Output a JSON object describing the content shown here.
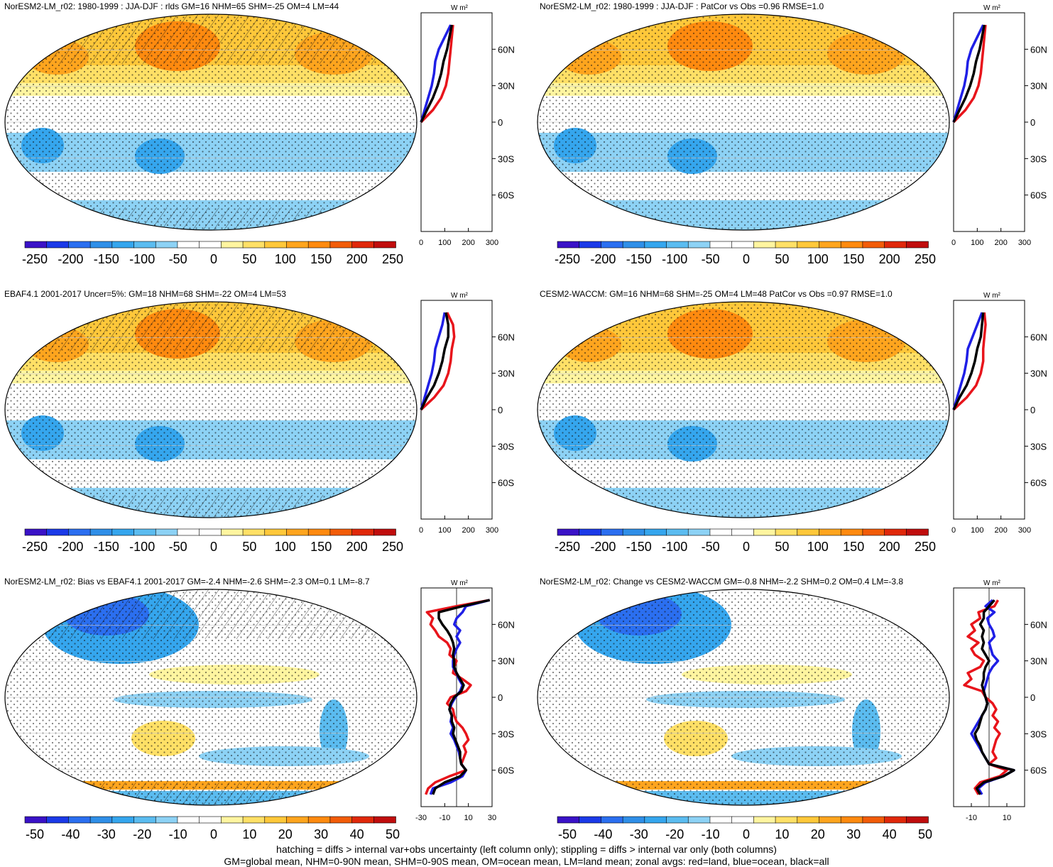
{
  "footer": {
    "line1": "hatching = diffs > internal var+obs uncertainty (left column only); stippling = diffs > internal var only (both columns)",
    "line2": "GM=global mean, NHM=0-90N mean, SHM=0-90S mean, OM=ocean mean, LM=land mean; zonal avgs: red=land, blue=ocean, black=all"
  },
  "colors": {
    "land": "#e8141b",
    "ocean": "#1f1fe6",
    "all": "#000000",
    "scale": [
      "#3a12c7",
      "#1b3ae8",
      "#2b6ff0",
      "#2f8fe8",
      "#35a6ee",
      "#5bbcf0",
      "#8dd2f5",
      "#ffffff",
      "#ffffff",
      "#fff5a0",
      "#ffe066",
      "#ffc83a",
      "#ffa51e",
      "#ff8a0f",
      "#f25c08",
      "#e0280a",
      "#c00d0d"
    ]
  },
  "panels": [
    {
      "title": "NorESM2-LM_r02: 1980-1999 : JJA-DJF : rlds GM=16 NHM=65 SHM=-25 OM=4 LM=44",
      "colorbar_labels": [
        "-250",
        "-200",
        "-150",
        "-100",
        "-50",
        "0",
        "50",
        "100",
        "150",
        "200",
        "250"
      ],
      "chart_data": {
        "type": "line",
        "title": "",
        "xlabel": "W m²",
        "x_ticks": [
          "0",
          "100",
          "200",
          "300"
        ],
        "y_ticks": [
          "60N",
          "30N",
          "0",
          "30S",
          "60S"
        ],
        "xlim": [
          0,
          300
        ],
        "ylim": [
          -90,
          90
        ],
        "series": [
          {
            "name": "land",
            "lat": [
              0,
              10,
              20,
              30,
              40,
              50,
              60,
              70,
              80
            ],
            "values": [
              0,
              50,
              85,
              105,
              115,
              120,
              125,
              130,
              135
            ]
          },
          {
            "name": "ocean",
            "lat": [
              0,
              10,
              20,
              30,
              40,
              50,
              60,
              70,
              80
            ],
            "values": [
              0,
              15,
              30,
              45,
              55,
              60,
              75,
              100,
              125
            ]
          },
          {
            "name": "all",
            "lat": [
              0,
              10,
              20,
              30,
              40,
              50,
              60,
              70,
              80
            ],
            "values": [
              0,
              25,
              50,
              70,
              85,
              95,
              110,
              120,
              130
            ]
          }
        ]
      }
    },
    {
      "title": "NorESM2-LM_r02: 1980-1999 : JJA-DJF : PatCor vs Obs =0.96 RMSE=1.0",
      "colorbar_labels": [
        "-250",
        "-200",
        "-150",
        "-100",
        "-50",
        "0",
        "50",
        "100",
        "150",
        "200",
        "250"
      ],
      "chart_data": {
        "type": "line",
        "title": "",
        "xlabel": "W m²",
        "x_ticks": [
          "0",
          "100",
          "200",
          "300"
        ],
        "y_ticks": [
          "60N",
          "30N",
          "0",
          "30S",
          "60S"
        ],
        "xlim": [
          0,
          300
        ],
        "ylim": [
          -90,
          90
        ],
        "series": [
          {
            "name": "land",
            "lat": [
              0,
              10,
              20,
              30,
              40,
              50,
              60,
              70,
              80
            ],
            "values": [
              0,
              50,
              85,
              105,
              115,
              120,
              125,
              130,
              135
            ]
          },
          {
            "name": "ocean",
            "lat": [
              0,
              10,
              20,
              30,
              40,
              50,
              60,
              70,
              80
            ],
            "values": [
              0,
              15,
              30,
              45,
              55,
              60,
              75,
              100,
              125
            ]
          },
          {
            "name": "all",
            "lat": [
              0,
              10,
              20,
              30,
              40,
              50,
              60,
              70,
              80
            ],
            "values": [
              0,
              25,
              50,
              70,
              85,
              95,
              110,
              120,
              130
            ]
          }
        ]
      }
    },
    {
      "title": "EBAF4.1 2001-2017 Uncer=5%: GM=18 NHM=68 SHM=-22 OM=4 LM=53",
      "colorbar_labels": [
        "-250",
        "-200",
        "-150",
        "-100",
        "-50",
        "0",
        "50",
        "100",
        "150",
        "200",
        "250"
      ],
      "chart_data": {
        "type": "line",
        "title": "",
        "xlabel": "W m²",
        "x_ticks": [
          "0",
          "100",
          "200",
          "300"
        ],
        "y_ticks": [
          "60N",
          "30N",
          "0",
          "30S",
          "60S"
        ],
        "xlim": [
          0,
          300
        ],
        "ylim": [
          -90,
          90
        ],
        "series": [
          {
            "name": "land",
            "lat": [
              0,
              10,
              20,
              30,
              40,
              50,
              60,
              70,
              80
            ],
            "values": [
              0,
              55,
              95,
              115,
              125,
              130,
              140,
              135,
              110
            ]
          },
          {
            "name": "ocean",
            "lat": [
              0,
              10,
              20,
              30,
              40,
              50,
              60,
              70,
              80
            ],
            "values": [
              0,
              15,
              30,
              45,
              55,
              60,
              75,
              90,
              100
            ]
          },
          {
            "name": "all",
            "lat": [
              0,
              10,
              20,
              30,
              40,
              50,
              60,
              70,
              80
            ],
            "values": [
              0,
              25,
              55,
              75,
              90,
              100,
              115,
              115,
              105
            ]
          }
        ]
      }
    },
    {
      "title": "CESM2-WACCM: GM=16 NHM=68 SHM=-25 OM=4 LM=48 PatCor vs Obs =0.97 RMSE=1.0",
      "colorbar_labels": [
        "-250",
        "-200",
        "-150",
        "-100",
        "-50",
        "0",
        "50",
        "100",
        "150",
        "200",
        "250"
      ],
      "chart_data": {
        "type": "line",
        "title": "",
        "xlabel": "W m²",
        "x_ticks": [
          "0",
          "100",
          "200",
          "300"
        ],
        "y_ticks": [
          "60N",
          "30N",
          "0",
          "30S",
          "60S"
        ],
        "xlim": [
          0,
          300
        ],
        "ylim": [
          -90,
          90
        ],
        "series": [
          {
            "name": "land",
            "lat": [
              0,
              10,
              20,
              30,
              40,
              50,
              60,
              70,
              80
            ],
            "values": [
              0,
              55,
              95,
              115,
              125,
              125,
              130,
              135,
              130
            ]
          },
          {
            "name": "ocean",
            "lat": [
              0,
              10,
              20,
              30,
              40,
              50,
              60,
              70,
              80
            ],
            "values": [
              0,
              15,
              30,
              45,
              55,
              60,
              80,
              100,
              120
            ]
          },
          {
            "name": "all",
            "lat": [
              0,
              10,
              20,
              30,
              40,
              50,
              60,
              70,
              80
            ],
            "values": [
              0,
              25,
              55,
              75,
              90,
              100,
              115,
              120,
              125
            ]
          }
        ]
      }
    },
    {
      "title": "NorESM2-LM_r02: Bias vs EBAF4.1 2001-2017 GM=-2.4 NHM=-2.6 SHM=-2.3 OM=0.1 LM=-8.7",
      "colorbar_labels": [
        "-50",
        "-40",
        "-30",
        "-20",
        "-10",
        "0",
        "10",
        "20",
        "30",
        "40",
        "50"
      ],
      "chart_data": {
        "type": "line",
        "title": "",
        "xlabel": "W m²",
        "x_ticks": [
          "-30",
          "-10",
          "10",
          "30"
        ],
        "y_ticks": [
          "60N",
          "30N",
          "0",
          "30S",
          "60S"
        ],
        "xlim": [
          -30,
          30
        ],
        "ylim": [
          -90,
          90
        ],
        "series": [
          {
            "name": "land",
            "lat": [
              80,
              75,
              70,
              65,
              60,
              55,
              50,
              45,
              40,
              35,
              30,
              25,
              20,
              15,
              10,
              5,
              0,
              -5,
              -10,
              -15,
              -20,
              -25,
              -30,
              -35,
              -40,
              -45,
              -50,
              -55,
              -60,
              -65,
              -70,
              -75,
              -80
            ],
            "values": [
              28,
              0,
              -25,
              -20,
              -22,
              -18,
              -15,
              -8,
              -5,
              -6,
              0,
              -2,
              -3,
              5,
              12,
              8,
              -5,
              -8,
              -3,
              -2,
              0,
              5,
              8,
              10,
              6,
              8,
              6,
              4,
              8,
              -6,
              -18,
              -24,
              -26
            ]
          },
          {
            "name": "ocean",
            "lat": [
              80,
              75,
              70,
              65,
              60,
              55,
              50,
              45,
              40,
              35,
              30,
              25,
              20,
              15,
              10,
              5,
              0,
              -5,
              -10,
              -15,
              -20,
              -25,
              -30,
              -35,
              -40,
              -45,
              -50,
              -55,
              -60,
              -65,
              -70,
              -75,
              -80
            ],
            "values": [
              28,
              8,
              5,
              0,
              -2,
              3,
              0,
              3,
              0,
              -2,
              -3,
              -3,
              0,
              2,
              5,
              3,
              -1,
              -4,
              -6,
              -4,
              -5,
              -3,
              -5,
              -2,
              0,
              2,
              3,
              4,
              8,
              5,
              -5,
              -20,
              -22
            ]
          },
          {
            "name": "all",
            "lat": [
              80,
              75,
              70,
              65,
              60,
              55,
              50,
              45,
              40,
              35,
              30,
              25,
              20,
              15,
              10,
              5,
              0,
              -5,
              -10,
              -15,
              -20,
              -25,
              -30,
              -35,
              -40,
              -45,
              -50,
              -55,
              -60,
              -65,
              -70,
              -75,
              -80
            ],
            "values": [
              28,
              5,
              -15,
              -15,
              -12,
              -8,
              -5,
              -3,
              -2,
              -3,
              -2,
              -2,
              0,
              3,
              6,
              4,
              -2,
              -5,
              -6,
              -4,
              -4,
              -2,
              -3,
              -1,
              1,
              3,
              3,
              4,
              8,
              3,
              -10,
              -18,
              -20
            ]
          }
        ]
      }
    },
    {
      "title": "NorESM2-LM_r02: Change vs CESM2-WACCM GM=-0.8 NHM=-2.2 SHM=0.2 OM=0.4 LM=-3.8",
      "colorbar_labels": [
        "-50",
        "-40",
        "-30",
        "-20",
        "-10",
        "0",
        "10",
        "20",
        "30",
        "40",
        "50"
      ],
      "chart_data": {
        "type": "line",
        "title": "",
        "xlabel": "W m²",
        "x_ticks": [
          "-10",
          "10"
        ],
        "y_ticks": [
          "60N",
          "30N",
          "0",
          "30S",
          "60S"
        ],
        "xlim": [
          -20,
          20
        ],
        "ylim": [
          -90,
          90
        ],
        "series": [
          {
            "name": "land",
            "lat": [
              80,
              75,
              70,
              65,
              60,
              55,
              50,
              45,
              40,
              35,
              30,
              25,
              20,
              15,
              10,
              5,
              0,
              -5,
              -10,
              -15,
              -20,
              -25,
              -30,
              -35,
              -40,
              -45,
              -50,
              -55,
              -60,
              -65,
              -70,
              -75,
              -80
            ],
            "values": [
              5,
              3,
              -6,
              -5,
              -10,
              -8,
              -12,
              -6,
              -10,
              -8,
              -3,
              -5,
              -12,
              -10,
              -14,
              -4,
              -2,
              2,
              4,
              2,
              5,
              3,
              6,
              4,
              3,
              2,
              4,
              0,
              10,
              6,
              -5,
              -8,
              -6
            ]
          },
          {
            "name": "ocean",
            "lat": [
              80,
              75,
              70,
              65,
              60,
              55,
              50,
              45,
              40,
              35,
              30,
              25,
              20,
              15,
              10,
              5,
              0,
              -5,
              -10,
              -15,
              -20,
              -25,
              -30,
              -35,
              -40,
              -45,
              -50,
              -55,
              -60,
              -65,
              -70,
              -75,
              -80
            ],
            "values": [
              2,
              -2,
              3,
              -1,
              0,
              2,
              3,
              0,
              1,
              2,
              5,
              2,
              0,
              -1,
              -2,
              -3,
              -2,
              -1,
              -2,
              -4,
              -6,
              -8,
              -10,
              -8,
              -6,
              -4,
              -2,
              0,
              14,
              8,
              -2,
              -6,
              -4
            ]
          },
          {
            "name": "all",
            "lat": [
              80,
              75,
              70,
              65,
              60,
              55,
              50,
              45,
              40,
              35,
              30,
              25,
              20,
              15,
              10,
              5,
              0,
              -5,
              -10,
              -15,
              -20,
              -25,
              -30,
              -35,
              -40,
              -45,
              -50,
              -55,
              -60,
              -65,
              -70,
              -75,
              -80
            ],
            "values": [
              3,
              0,
              -3,
              -3,
              -5,
              -3,
              -4,
              -3,
              -4,
              -2,
              0,
              -2,
              -3,
              -3,
              -4,
              -3,
              -2,
              -1,
              -2,
              -4,
              -5,
              -6,
              -8,
              -7,
              -5,
              -4,
              -2,
              0,
              14,
              8,
              -3,
              -7,
              -5
            ]
          }
        ]
      }
    }
  ]
}
